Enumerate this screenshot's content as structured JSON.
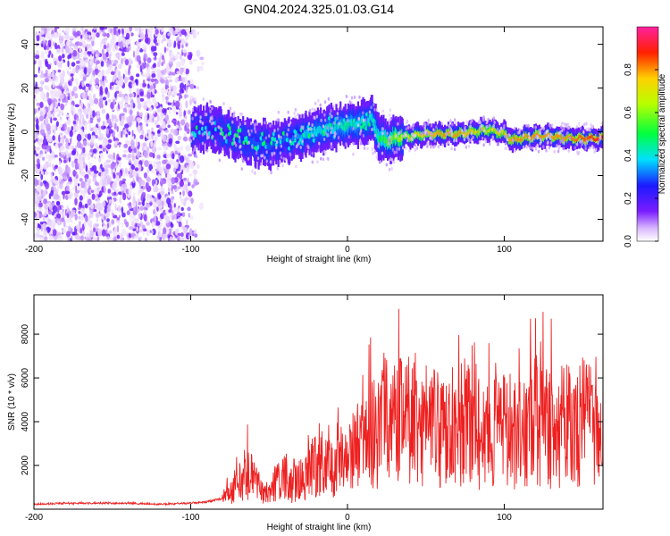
{
  "chart_data": [
    {
      "type": "heatmap",
      "title": "GN04.2024.325.01.03.G14",
      "xlabel": "Height of straight line (km)",
      "ylabel": "Frequency (Hz)",
      "xlim": [
        -200,
        163
      ],
      "ylim": [
        -50,
        48
      ],
      "xticks": [
        -200,
        -100,
        0,
        100
      ],
      "yticks": [
        -40,
        -20,
        0,
        20,
        40
      ],
      "colorbar": {
        "label": "Normalized spectral amplitude",
        "range": [
          0,
          1
        ],
        "ticks": [
          "0.0",
          "0.2",
          "0.4",
          "0.6",
          "0.8"
        ],
        "colormap": "rainbow (white-violet-blue-cyan-green-yellow-red-magenta)"
      },
      "ridge": {
        "x": [
          -100,
          -90,
          -80,
          -70,
          -60,
          -50,
          -40,
          -30,
          -20,
          -10,
          0,
          10,
          15,
          20,
          25,
          30,
          40,
          50,
          60,
          70,
          80,
          90,
          100,
          105,
          110,
          120,
          130,
          140,
          150,
          163
        ],
        "frequency": [
          1,
          2,
          0,
          -3,
          -5,
          -6,
          -4,
          -2,
          0,
          2,
          3,
          4,
          6,
          -3,
          -4,
          -3,
          -2,
          -1,
          -1,
          -1,
          0,
          1,
          -1,
          -4,
          -3,
          -2,
          -2,
          -3,
          -3,
          -3
        ],
        "peak_amplitude": [
          0.2,
          0.25,
          0.25,
          0.25,
          0.3,
          0.3,
          0.3,
          0.35,
          0.4,
          0.4,
          0.45,
          0.4,
          0.4,
          0.5,
          0.55,
          0.6,
          0.7,
          0.75,
          0.8,
          0.8,
          0.75,
          0.7,
          0.75,
          0.8,
          0.8,
          0.8,
          0.8,
          0.8,
          0.85,
          0.9
        ]
      },
      "noise_region": {
        "x_from": -200,
        "x_to": -92,
        "frequency_from": -50,
        "frequency_to": 48,
        "amplitude": 0.1
      }
    },
    {
      "type": "line",
      "title": "",
      "xlabel": "Height of straight line (km)",
      "ylabel": "SNR (10 * v/v)",
      "xlim": [
        -200,
        163
      ],
      "ylim": [
        0,
        9800
      ],
      "xticks": [
        -200,
        -100,
        0,
        100
      ],
      "yticks": [
        2000,
        4000,
        6000,
        8000
      ],
      "color": "#ee2020",
      "series": [
        {
          "x": [
            -200,
            -180,
            -160,
            -140,
            -120,
            -100,
            -90,
            -80,
            -75,
            -70,
            -65,
            -60,
            -55,
            -50,
            -45,
            -40,
            -35,
            -30,
            -25,
            -20,
            -15,
            -10,
            -5,
            0,
            5,
            10,
            15,
            20,
            25,
            30,
            35,
            40,
            45,
            50,
            55,
            60,
            65,
            70,
            75,
            80,
            85,
            90,
            95,
            100,
            105,
            110,
            115,
            120,
            125,
            130,
            135,
            140,
            145,
            150,
            155,
            163
          ],
          "values": [
            200,
            250,
            250,
            250,
            200,
            250,
            300,
            450,
            700,
            1000,
            1800,
            1300,
            800,
            800,
            1300,
            1400,
            1000,
            1300,
            1700,
            1900,
            1800,
            1800,
            2100,
            2300,
            2600,
            3000,
            3300,
            3700,
            4300,
            4200,
            4100,
            3900,
            4000,
            3800,
            3600,
            3600,
            3700,
            3900,
            3900,
            3500,
            3300,
            3500,
            3600,
            3500,
            3300,
            3300,
            3500,
            3700,
            3700,
            3600,
            3700,
            3900,
            3800,
            3900,
            3800,
            3700
          ]
        }
      ]
    }
  ]
}
